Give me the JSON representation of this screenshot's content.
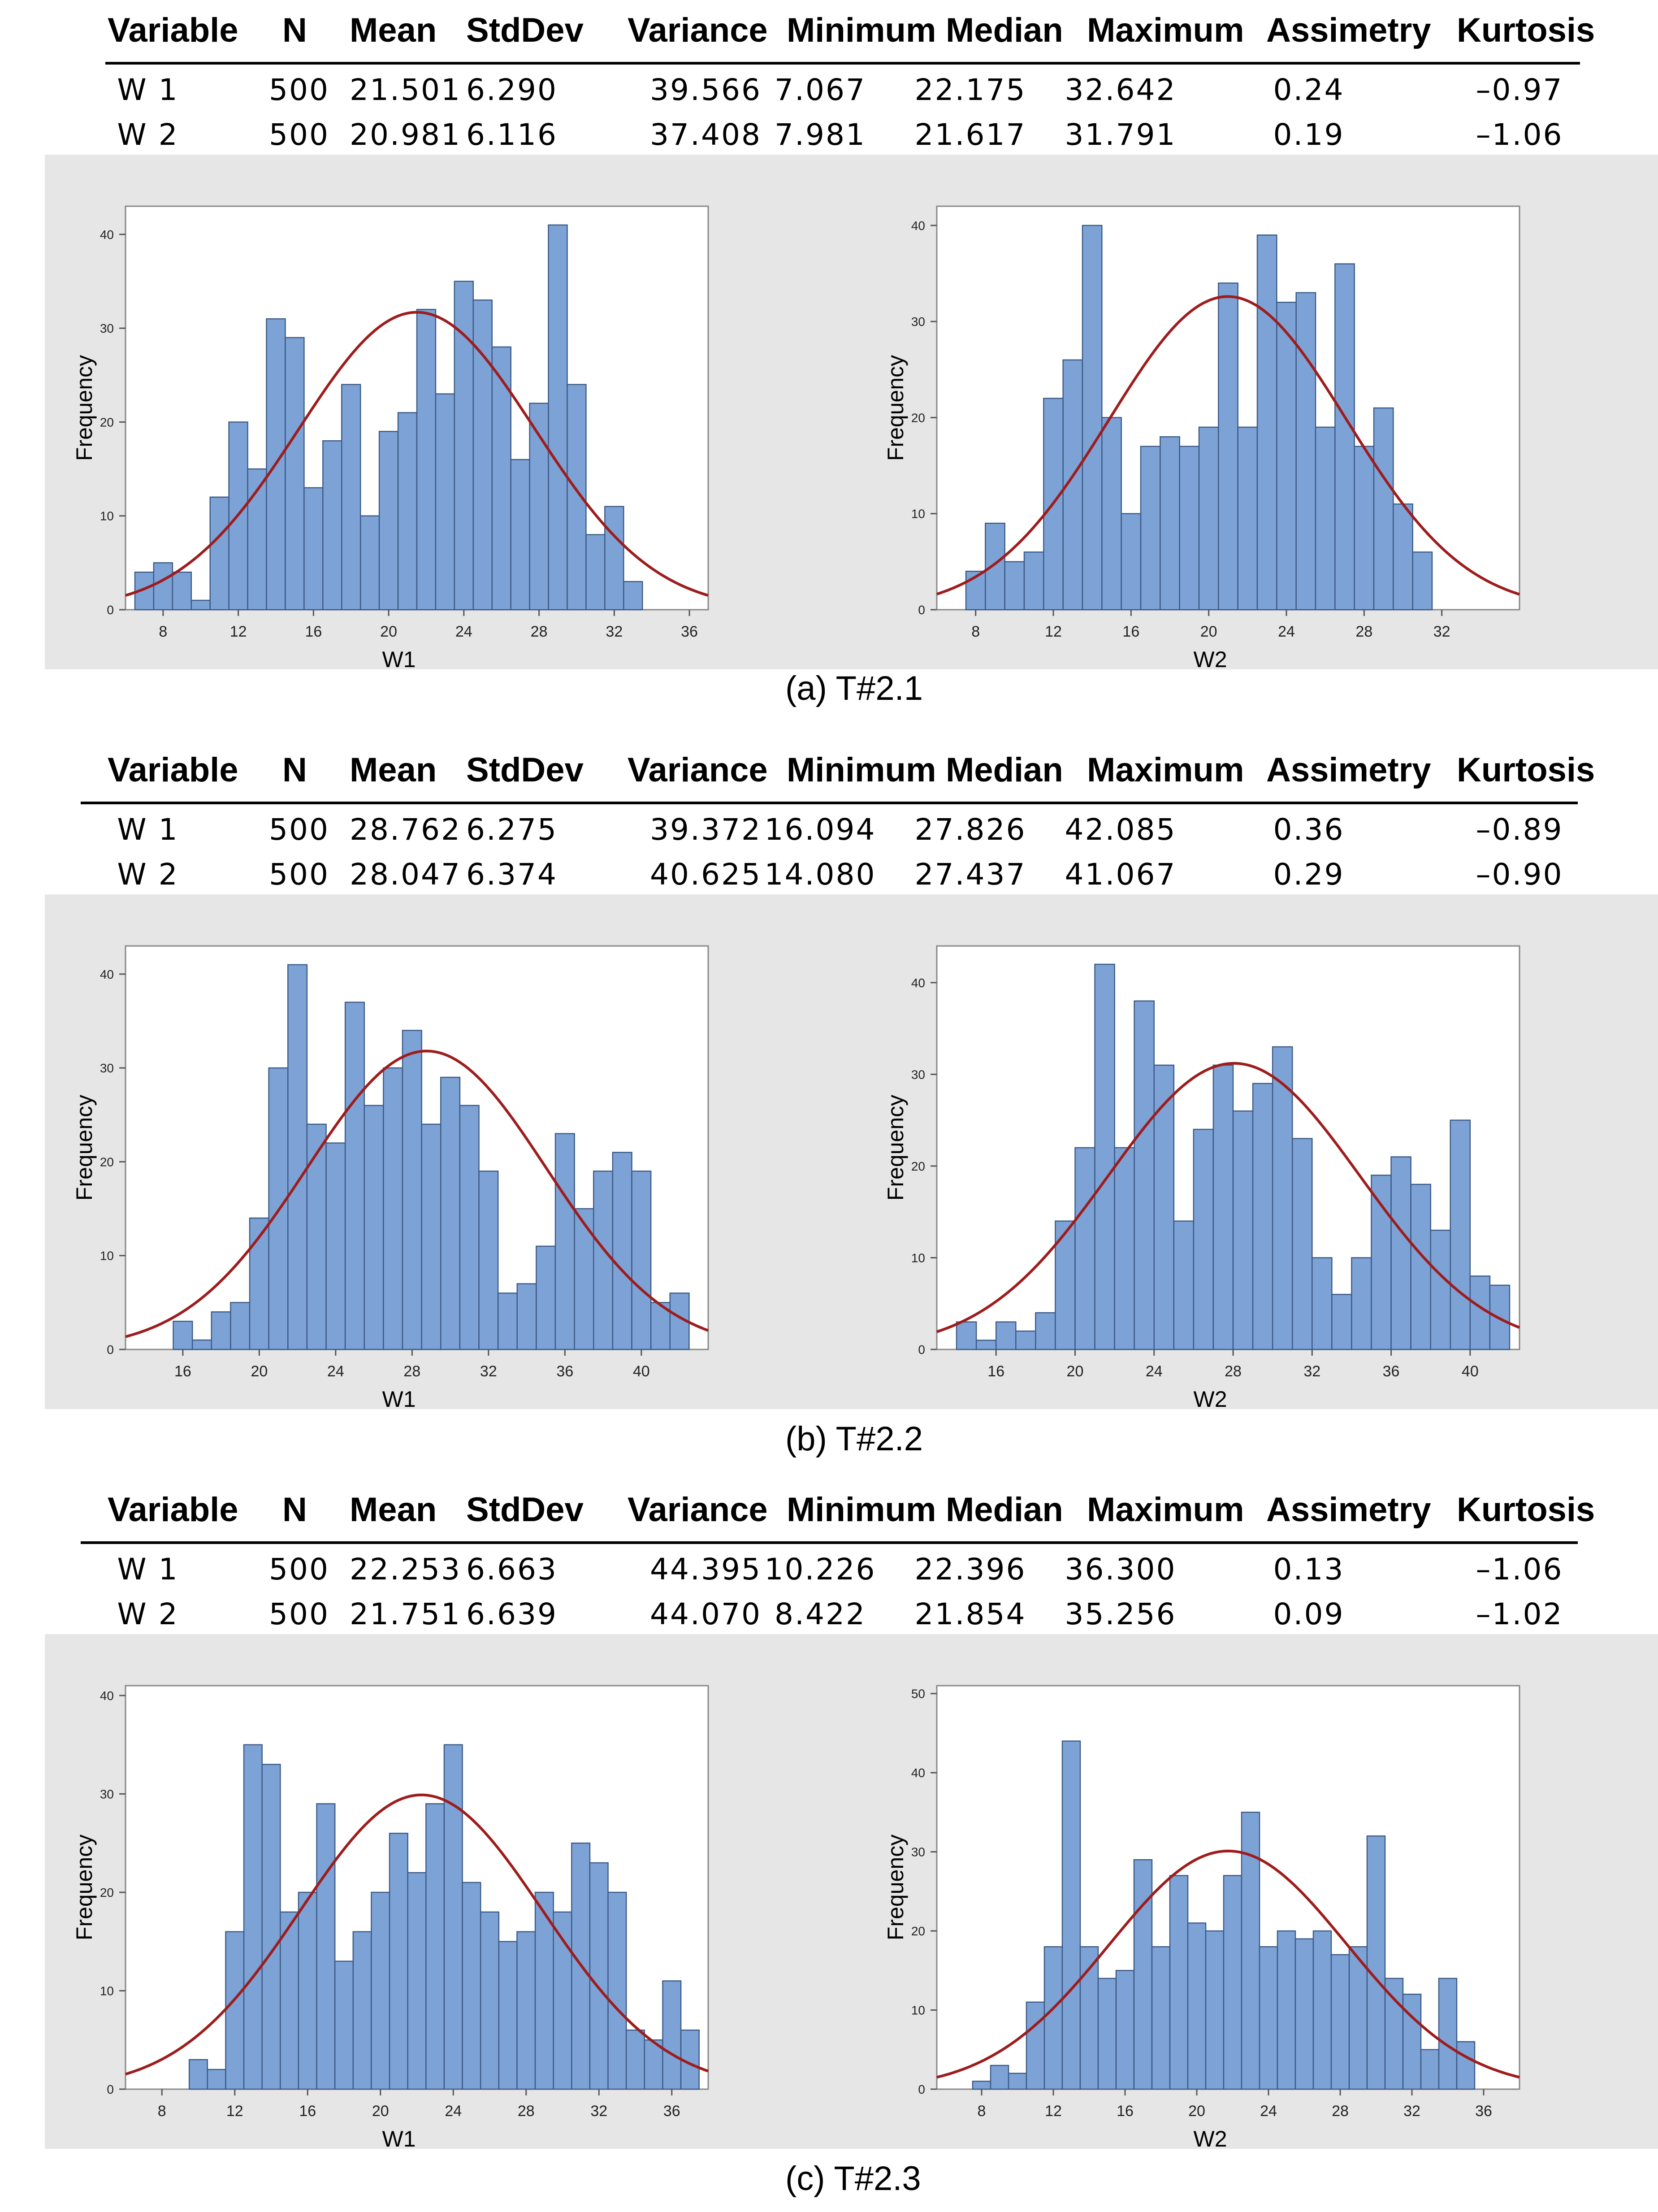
{
  "table_headers": [
    "Variable",
    "N",
    "Mean",
    "StdDev",
    "Variance",
    "Minimum",
    "Median",
    "Maximum",
    "Assimetry",
    "Kurtosis"
  ],
  "sections": [
    {
      "caption": "(a) T#2.1",
      "rows": [
        [
          "W 1",
          "500",
          "21.501",
          "6.290",
          "39.566",
          "7.067",
          "22.175",
          "32.642",
          "0.24",
          "–0.97"
        ],
        [
          "W 2",
          "500",
          "20.981",
          "6.116",
          "37.408",
          "7.981",
          "21.617",
          "31.791",
          "0.19",
          "–1.06"
        ]
      ]
    },
    {
      "caption": "(b) T#2.2",
      "rows": [
        [
          "W 1",
          "500",
          "28.762",
          "6.275",
          "39.372",
          "16.094",
          "27.826",
          "42.085",
          "0.36",
          "–0.89"
        ],
        [
          "W 2",
          "500",
          "28.047",
          "6.374",
          "40.625",
          "14.080",
          "27.437",
          "41.067",
          "0.29",
          "–0.90"
        ]
      ]
    },
    {
      "caption": "(c) T#2.3",
      "rows": [
        [
          "W 1",
          "500",
          "22.253",
          "6.663",
          "44.395",
          "10.226",
          "22.396",
          "36.300",
          "0.13",
          "–1.06"
        ],
        [
          "W 2",
          "500",
          "21.751",
          "6.639",
          "44.070",
          "8.422",
          "21.854",
          "35.256",
          "0.09",
          "–1.02"
        ]
      ]
    }
  ],
  "chart_data": [
    {
      "type": "bar",
      "xlabel": "W1",
      "ylabel": "Frequency",
      "xlim": [
        6,
        37
      ],
      "ylim": [
        0,
        43
      ],
      "xticks": [
        8,
        12,
        16,
        20,
        24,
        28,
        32,
        36
      ],
      "yticks": [
        0,
        10,
        20,
        30,
        40
      ],
      "bin_start": 6.5,
      "bin_width": 1,
      "values": [
        4,
        5,
        4,
        1,
        12,
        20,
        15,
        31,
        29,
        13,
        18,
        24,
        10,
        19,
        21,
        32,
        23,
        35,
        33,
        28,
        16,
        22,
        41,
        24,
        8,
        11,
        3
      ],
      "curve": {
        "mean": 21.501,
        "sd": 6.29,
        "peak": 31.7
      }
    },
    {
      "type": "bar",
      "xlabel": "W2",
      "ylabel": "Frequency",
      "xlim": [
        6,
        36
      ],
      "ylim": [
        0,
        42
      ],
      "xticks": [
        8,
        12,
        16,
        20,
        24,
        28,
        32
      ],
      "yticks": [
        0,
        10,
        20,
        30,
        40
      ],
      "bin_start": 7.5,
      "bin_width": 1,
      "values": [
        4,
        9,
        5,
        6,
        22,
        26,
        40,
        20,
        10,
        17,
        18,
        17,
        19,
        34,
        19,
        39,
        32,
        33,
        19,
        36,
        17,
        21,
        11,
        6
      ],
      "curve": {
        "mean": 20.981,
        "sd": 6.116,
        "peak": 32.6
      }
    },
    {
      "type": "bar",
      "xlabel": "W1",
      "ylabel": "Frequency",
      "xlim": [
        13,
        43.5
      ],
      "ylim": [
        0,
        43
      ],
      "xticks": [
        16,
        20,
        24,
        28,
        32,
        36,
        40
      ],
      "yticks": [
        0,
        10,
        20,
        30,
        40
      ],
      "bin_start": 15.5,
      "bin_width": 1,
      "values": [
        3,
        1,
        4,
        5,
        14,
        30,
        41,
        24,
        22,
        37,
        26,
        30,
        34,
        24,
        29,
        26,
        19,
        6,
        7,
        11,
        23,
        15,
        19,
        21,
        19,
        5,
        6
      ],
      "curve": {
        "mean": 28.762,
        "sd": 6.275,
        "peak": 31.8
      }
    },
    {
      "type": "bar",
      "xlabel": "W2",
      "ylabel": "Frequency",
      "xlim": [
        13,
        42.5
      ],
      "ylim": [
        0,
        44
      ],
      "xticks": [
        16,
        20,
        24,
        28,
        32,
        36,
        40
      ],
      "yticks": [
        0,
        10,
        20,
        30,
        40
      ],
      "bin_start": 14,
      "bin_width": 1,
      "values": [
        3,
        1,
        3,
        2,
        4,
        14,
        22,
        42,
        22,
        38,
        31,
        14,
        24,
        31,
        26,
        29,
        33,
        23,
        10,
        6,
        10,
        19,
        21,
        18,
        13,
        25,
        8,
        7
      ],
      "curve": {
        "mean": 28.047,
        "sd": 6.374,
        "peak": 31.2
      }
    },
    {
      "type": "bar",
      "xlabel": "W1",
      "ylabel": "Frequency",
      "xlim": [
        6,
        38
      ],
      "ylim": [
        0,
        41
      ],
      "xticks": [
        8,
        12,
        16,
        20,
        24,
        28,
        32,
        36
      ],
      "yticks": [
        0,
        10,
        20,
        30,
        40
      ],
      "bin_start": 9.5,
      "bin_width": 1,
      "values": [
        3,
        2,
        16,
        35,
        33,
        18,
        20,
        29,
        13,
        16,
        20,
        26,
        22,
        29,
        35,
        21,
        18,
        15,
        16,
        20,
        18,
        25,
        23,
        20,
        6,
        5,
        11,
        6
      ],
      "curve": {
        "mean": 22.253,
        "sd": 6.663,
        "peak": 29.9
      }
    },
    {
      "type": "bar",
      "xlabel": "W2",
      "ylabel": "Frequency",
      "xlim": [
        5.5,
        38
      ],
      "ylim": [
        0,
        51
      ],
      "xticks": [
        8,
        12,
        16,
        20,
        24,
        28,
        32,
        36
      ],
      "yticks": [
        0,
        10,
        20,
        30,
        40,
        50
      ],
      "bin_start": 7.5,
      "bin_width": 1,
      "values": [
        1,
        3,
        2,
        11,
        18,
        44,
        18,
        14,
        15,
        29,
        18,
        27,
        21,
        20,
        27,
        35,
        18,
        20,
        19,
        20,
        17,
        18,
        32,
        14,
        12,
        5,
        14,
        6
      ],
      "curve": {
        "mean": 21.751,
        "sd": 6.639,
        "peak": 30.1
      }
    }
  ]
}
